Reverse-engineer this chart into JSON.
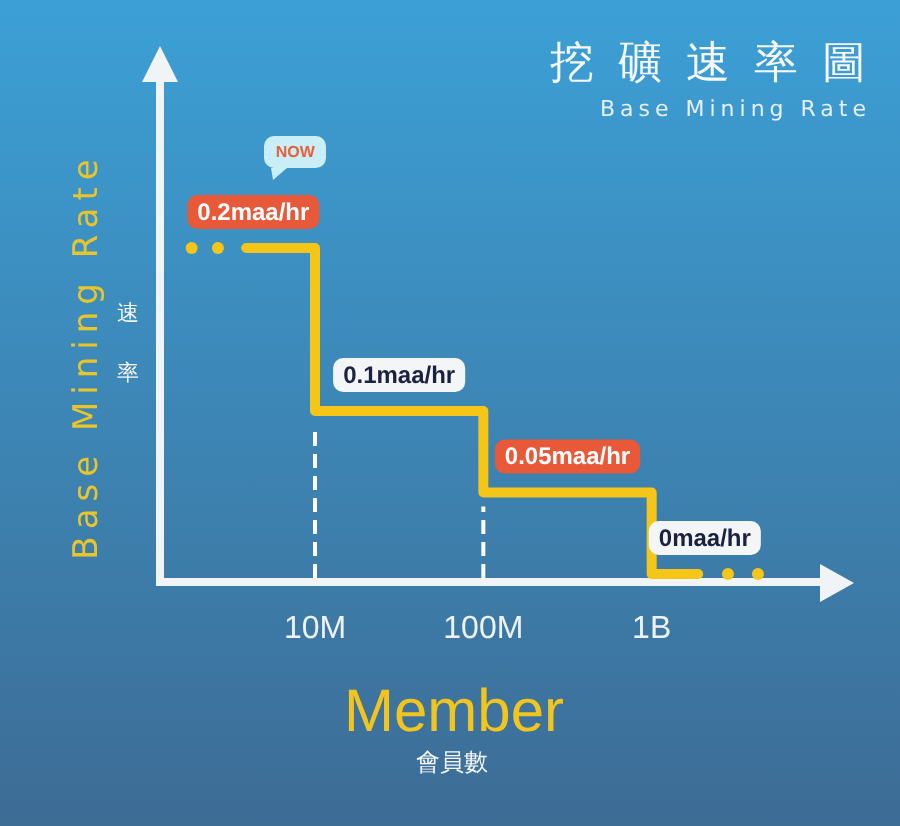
{
  "chart_data": {
    "type": "step",
    "title": "挖礦速率圖",
    "subtitle": "Base Mining Rate",
    "xlabel": "Member",
    "ylabel": "Base Mining Rate",
    "annotations": [
      "NOW",
      "速率",
      "會員數"
    ],
    "log": "x",
    "xlim": [
      1200000,
      10000000000
    ],
    "xticks": [
      {
        "value": 10000000,
        "label": "10M"
      },
      {
        "value": 100000000,
        "label": "100M"
      },
      {
        "value": 1000000000,
        "label": "1B"
      }
    ],
    "tick_labels": "x",
    "marker": "none",
    "series": [
      {
        "color": "#f5c518",
        "x": [
          3900000,
          10000000,
          100000000,
          1000000000,
          1890000000
        ],
        "values": [
          0.2,
          0.2,
          0.1,
          0.05,
          0
        ],
        "value_labels": [
          null,
          "0.2maa/hr",
          "0.1maa/hr",
          "0.05maa/hr",
          "0maa/hr"
        ]
      },
      {
        "type": "scatter",
        "marker": "circle",
        "color": "#f5c518",
        "x": [
          1850000,
          2650000
        ],
        "values": [
          0.2,
          0.2
        ]
      },
      {
        "type": "scatter",
        "marker": "circle",
        "color": "#f5c518",
        "x": [
          2840000000,
          4280000000
        ],
        "values": [
          0,
          0
        ]
      }
    ],
    "ref_lines": [
      {
        "axis": "x",
        "value": 10000000,
        "color": "#ffffff",
        "line_style": "dashed"
      },
      {
        "axis": "x",
        "value": 100000000,
        "color": "#ffffff",
        "line_style": "dashed"
      }
    ]
  }
}
